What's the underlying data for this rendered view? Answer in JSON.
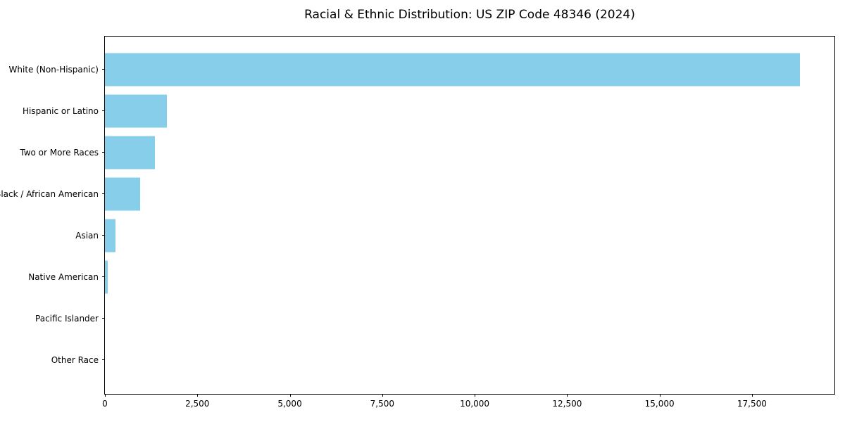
{
  "chart_data": {
    "type": "bar",
    "orientation": "horizontal",
    "title": "Racial & Ethnic Distribution: US ZIP Code 48346 (2024)",
    "categories": [
      "White (Non-Hispanic)",
      "Hispanic or Latino",
      "Two or More Races",
      "Black / African American",
      "Asian",
      "Native American",
      "Pacific Islander",
      "Other Race"
    ],
    "values": [
      18790,
      1675,
      1355,
      960,
      295,
      70,
      0,
      0
    ],
    "xlabel": "",
    "ylabel": "",
    "xlim": [
      0,
      19730
    ],
    "xticks": [
      0,
      2500,
      5000,
      7500,
      10000,
      12500,
      15000,
      17500
    ],
    "xtick_labels": [
      "0",
      "2,500",
      "5,000",
      "7,500",
      "10,000",
      "12,500",
      "15,000",
      "17,500"
    ],
    "bar_color": "#87CEEB",
    "text_color": "#000000",
    "grid": false,
    "legend": null
  }
}
